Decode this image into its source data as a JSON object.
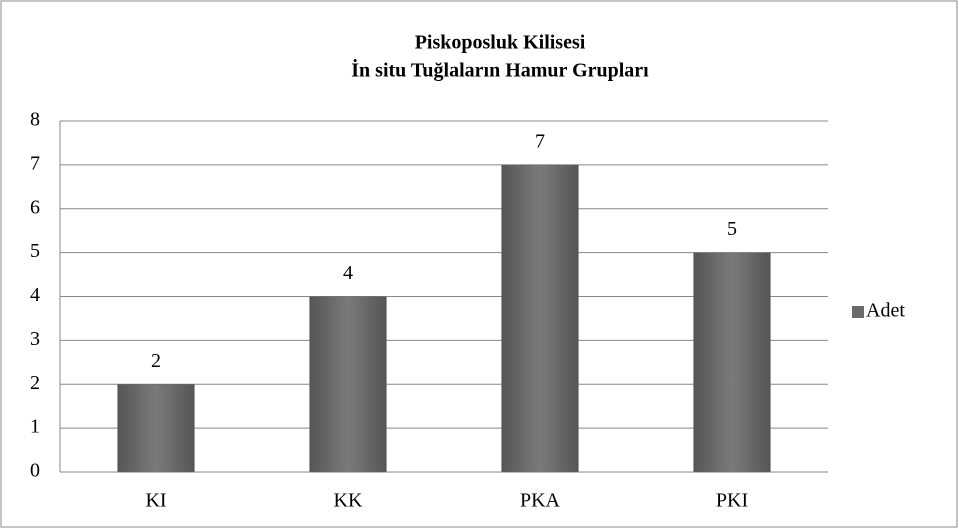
{
  "chart_data": {
    "type": "bar",
    "title": [
      "Piskoposluk Kilisesi",
      "İn situ Tuğlaların Hamur Grupları"
    ],
    "categories": [
      "KI",
      "KK",
      "PKA",
      "PKI"
    ],
    "series": [
      {
        "name": "Adet",
        "color": "#6a6a6a",
        "values": [
          2,
          4,
          7,
          5
        ]
      }
    ],
    "ylim": [
      0,
      8
    ],
    "yticks": [
      0,
      1,
      2,
      3,
      4,
      5,
      6,
      7,
      8
    ],
    "grid": true,
    "data_labels": true,
    "legend": "right"
  }
}
